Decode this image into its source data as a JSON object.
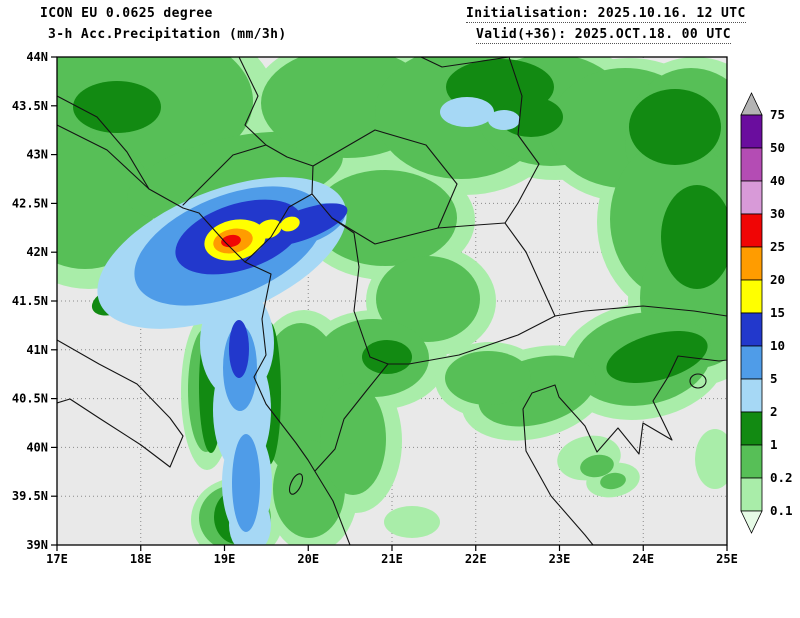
{
  "header": {
    "model_line": "ICON EU 0.0625 degree",
    "product_line": "3-h Acc.Precipitation (mm/3h)",
    "init_line": "Initialisation: 2025.10.16. 12 UTC",
    "valid_line": "Valid(+36): 2025.OCT.18. 00 UTC"
  },
  "axes": {
    "x_ticks": [
      "17E",
      "18E",
      "19E",
      "20E",
      "21E",
      "22E",
      "23E",
      "24E",
      "25E"
    ],
    "y_ticks": [
      "44N",
      "43.5N",
      "43N",
      "42.5N",
      "42N",
      "41.5N",
      "41N",
      "40.5N",
      "40N",
      "39.5N",
      "39N"
    ]
  },
  "map": {
    "bg": "#e9e9e9",
    "border_color": "#141414"
  },
  "colorbar": {
    "labels": [
      "75",
      "50",
      "40",
      "30",
      "25",
      "20",
      "15",
      "10",
      "5",
      "2",
      "1",
      "0.2",
      "0.1"
    ],
    "top_triangle_color": "#b4b4b4",
    "bottom_triangle_color": "#e6fbe6",
    "cell_colors": [
      "#6a0d9e",
      "#b44cb4",
      "#d89ad8",
      "#f00505",
      "#ff9c00",
      "#ffff00",
      "#2238cc",
      "#4f9ce8",
      "#a6d8f5",
      "#128a12",
      "#57bf57",
      "#a9eda9"
    ]
  },
  "chart_data": {
    "type": "heatmap",
    "title": "3-h Acc.Precipitation (mm/3h)",
    "model": "ICON EU 0.0625 degree",
    "init": "2025.10.16. 12 UTC",
    "valid": "2025.OCT.18. 00 UTC (+36)",
    "lon_range_deg_east": [
      17,
      25
    ],
    "lat_range_deg_north": [
      39,
      44
    ],
    "levels_mm_per_3h": [
      0.1,
      0.2,
      1,
      2,
      5,
      10,
      15,
      20,
      25,
      30,
      40,
      50,
      75
    ],
    "maximum": {
      "approx_lon_e": 19.1,
      "approx_lat_n": 42.2,
      "band_mm": "25-30"
    },
    "features": [
      "Intense precipitation core (25-30 mm/3h red, ringed by orange 20-25, yellow 15-20 and dark blue 10-15) over Montenegro / northern Albania near 19.1E 42.2N",
      "Two secondary yellow 15-20 mm/3h spots northeast of the core inside a dark-blue band",
      "Elongated SW-NE blue mass (2-10 mm/3h) around the core and a narrow blue band running south along about 19.8E from 42N to 39N",
      "Widespread 0.1-2 mm/3h green shading across the north and east of the domain with 1-2 mm/3h dark-green cores",
      "No precipitation (gray) over the southern Adriatic / Ionian Sea and parts of the south-central and southeastern domain"
    ]
  }
}
